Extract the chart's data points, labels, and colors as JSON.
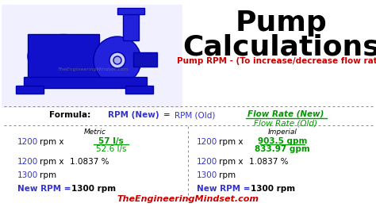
{
  "title_line1": "Pump",
  "title_line2": "Calculations",
  "subtitle": "Pump RPM - (To increase/decrease flow rate)",
  "subtitle_color": "#cc0000",
  "title_color": "#000000",
  "formula_label": "Formula:",
  "formula_new": "RPM (New)",
  "formula_eq": "=",
  "formula_old": "RPM (Old)",
  "formula_num": "Flow Rate (New)",
  "formula_den": "Flow Rate (Old)",
  "metric_label": "Metric",
  "imperial_label": "Imperial",
  "blue_color": "#3333cc",
  "green_color": "#009900",
  "black": "#000000",
  "gray": "#888888",
  "bg_color": "#ffffff",
  "watermark": "TheEngineeringMindset.com",
  "watermark_color": "#cc0000",
  "fig_width": 4.74,
  "fig_height": 2.66,
  "dpi": 100
}
